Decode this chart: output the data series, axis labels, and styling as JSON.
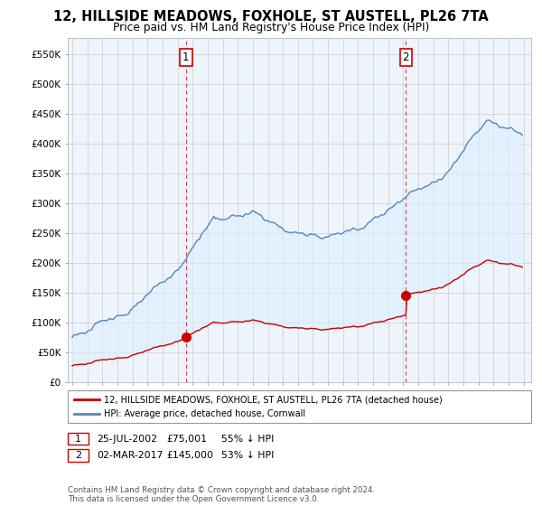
{
  "title": "12, HILLSIDE MEADOWS, FOXHOLE, ST AUSTELL, PL26 7TA",
  "subtitle": "Price paid vs. HM Land Registry's House Price Index (HPI)",
  "title_fontsize": 10.5,
  "subtitle_fontsize": 9,
  "ylim": [
    0,
    577000
  ],
  "xlim_start": 1994.7,
  "xlim_end": 2025.5,
  "ytick_labels": [
    "£0",
    "£50K",
    "£100K",
    "£150K",
    "£200K",
    "£250K",
    "£300K",
    "£350K",
    "£400K",
    "£450K",
    "£500K",
    "£550K"
  ],
  "ytick_values": [
    0,
    50000,
    100000,
    150000,
    200000,
    250000,
    300000,
    350000,
    400000,
    450000,
    500000,
    550000
  ],
  "red_line_color": "#cc0000",
  "blue_line_color": "#5588bb",
  "fill_color": "#ddeeff",
  "marker1_date": 2002.56,
  "marker1_price": 75001,
  "marker2_date": 2017.17,
  "marker2_price": 145000,
  "legend_entry1": "12, HILLSIDE MEADOWS, FOXHOLE, ST AUSTELL, PL26 7TA (detached house)",
  "legend_entry2": "HPI: Average price, detached house, Cornwall",
  "table_row1": [
    "1",
    "25-JUL-2002",
    "£75,001",
    "55% ↓ HPI"
  ],
  "table_row2": [
    "2",
    "02-MAR-2017",
    "£145,000",
    "53% ↓ HPI"
  ],
  "footnote": "Contains HM Land Registry data © Crown copyright and database right 2024.\nThis data is licensed under the Open Government Licence v3.0.",
  "background_color": "#ffffff",
  "plot_bg_color": "#eef4fb",
  "grid_color": "#cccccc"
}
